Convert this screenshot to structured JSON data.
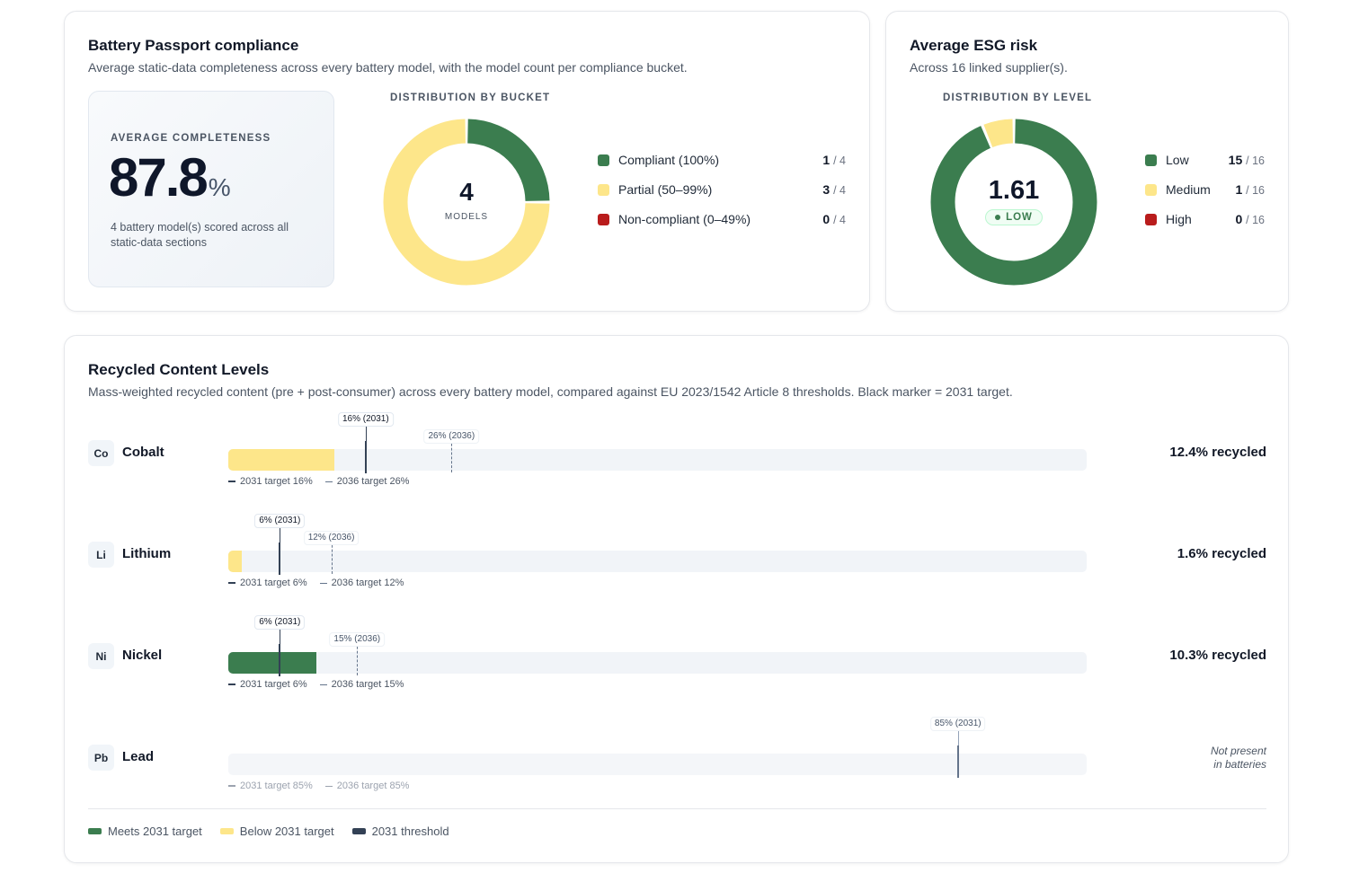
{
  "colors": {
    "green": "#3b7d4f",
    "yellow": "#fde68a",
    "red": "#b91c1c",
    "navy": "#334155",
    "track": "#f1f4f8"
  },
  "bp": {
    "title": "Battery Passport compliance",
    "subtitle": "Average static-data completeness across every battery model, with the model count per compliance bucket.",
    "avg_label": "AVERAGE COMPLETENESS",
    "avg_value": "87.8",
    "avg_unit": "%",
    "avg_note": "4 battery model(s) scored across all static-data sections",
    "dist_label": "DISTRIBUTION BY BUCKET",
    "center_value": "4",
    "center_label": "MODELS",
    "buckets": [
      {
        "label": "Compliant (100%)",
        "count": "1",
        "total": "/ 4",
        "color": "#3b7d4f",
        "value": 1
      },
      {
        "label": "Partial (50–99%)",
        "count": "3",
        "total": "/ 4",
        "color": "#fde68a",
        "value": 3
      },
      {
        "label": "Non-compliant (0–49%)",
        "count": "0",
        "total": "/ 4",
        "color": "#b91c1c",
        "value": 0
      }
    ]
  },
  "esg": {
    "title": "Average ESG risk",
    "subtitle": "Across 16 linked supplier(s).",
    "dist_label": "DISTRIBUTION BY LEVEL",
    "center_value": "1.61",
    "center_badge": "LOW",
    "levels": [
      {
        "label": "Low",
        "count": "15",
        "total": "/ 16",
        "color": "#3b7d4f",
        "value": 15
      },
      {
        "label": "Medium",
        "count": "1",
        "total": "/ 16",
        "color": "#fde68a",
        "value": 1
      },
      {
        "label": "High",
        "count": "0",
        "total": "/ 16",
        "color": "#b91c1c",
        "value": 0
      }
    ]
  },
  "rc": {
    "title": "Recycled Content Levels",
    "subtitle": "Mass-weighted recycled content (pre + post-consumer) across every battery model, compared against EU 2023/1542 Article 8 thresholds. Black marker = 2031 target.",
    "metals": [
      {
        "symbol": "Co",
        "name": "Cobalt",
        "recycled": 12.4,
        "recycled_label": "12.4% recycled",
        "target_2031": 16,
        "target_2036": 26,
        "tag_2031": "16% (2031)",
        "tag_2036": "26% (2036)",
        "leg_2031": "2031 target 16%",
        "leg_2036": "2036 target 26%",
        "status": "below",
        "present": true
      },
      {
        "symbol": "Li",
        "name": "Lithium",
        "recycled": 1.6,
        "recycled_label": "1.6% recycled",
        "target_2031": 6,
        "target_2036": 12,
        "tag_2031": "6% (2031)",
        "tag_2036": "12% (2036)",
        "leg_2031": "2031 target 6%",
        "leg_2036": "2036 target 12%",
        "status": "below",
        "present": true
      },
      {
        "symbol": "Ni",
        "name": "Nickel",
        "recycled": 10.3,
        "recycled_label": "10.3% recycled",
        "target_2031": 6,
        "target_2036": 15,
        "tag_2031": "6% (2031)",
        "tag_2036": "15% (2036)",
        "leg_2031": "2031 target 6%",
        "leg_2036": "2036 target 15%",
        "status": "meets",
        "present": true
      },
      {
        "symbol": "Pb",
        "name": "Lead",
        "recycled": 0,
        "recycled_label": "",
        "target_2031": 85,
        "target_2036": 85,
        "tag_2031": "85% (2031)",
        "tag_2036": "",
        "leg_2031": "2031 target 85%",
        "leg_2036": "2036 target 85%",
        "status": "absent",
        "present": false,
        "not_present_line1": "Not present",
        "not_present_line2": "in batteries"
      }
    ],
    "legend": [
      {
        "label": "Meets 2031 target",
        "color": "#3b7d4f"
      },
      {
        "label": "Below 2031 target",
        "color": "#fde68a"
      },
      {
        "label": "2031 threshold",
        "color": "#334155"
      }
    ]
  }
}
